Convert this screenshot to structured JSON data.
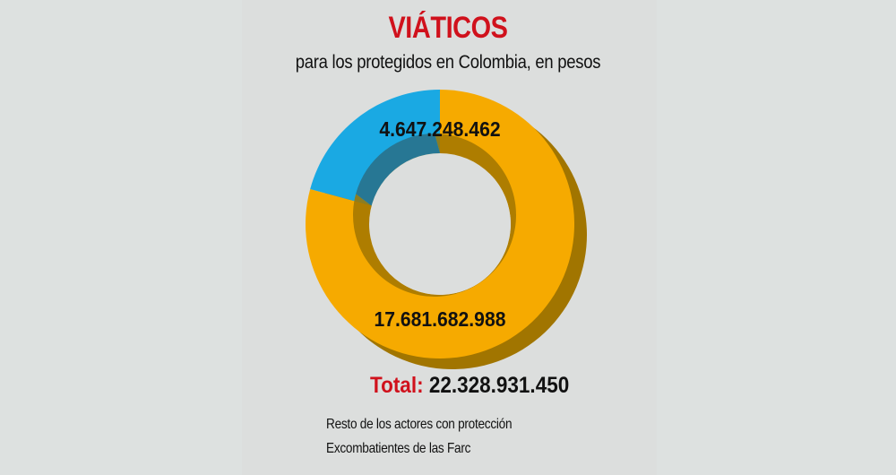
{
  "header": {
    "title": "VIÁTICOS",
    "subtitle": "para los protegidos en Colombia, en pesos"
  },
  "chart_data": {
    "type": "pie",
    "donut": true,
    "title": "VIÁTICOS",
    "subtitle": "para los protegidos en Colombia, en pesos",
    "series": [
      {
        "label": "Excombatientes de las Farc",
        "value": 4647248462,
        "display": "4.647.248.462",
        "color": "#1aa9e3"
      },
      {
        "label": "Resto de los actores con protección",
        "value": 17681682988,
        "display": "17.681.682.988",
        "color": "#f6aa00"
      }
    ],
    "total_label": "Total:",
    "total_display": "22.328.931.450",
    "total_value": 22328931450,
    "legend": [
      "Resto de los actores con protección",
      "Excombatientes de las Farc"
    ]
  },
  "colors": {
    "title": "#d0111c",
    "shadow": "#a17500",
    "shadow_blue": "#2a6f86"
  }
}
